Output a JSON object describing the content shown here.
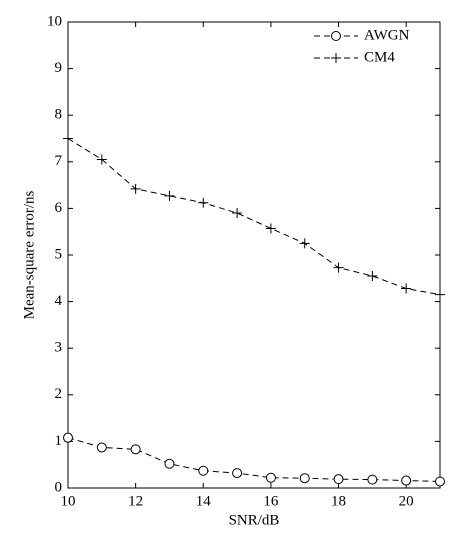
{
  "chart_data": {
    "type": "line",
    "x_label": "SNR/dB",
    "y_label": "Mean-square error/ns",
    "x": [
      10,
      11,
      12,
      13,
      14,
      15,
      16,
      17,
      18,
      19,
      20,
      21
    ],
    "series": [
      {
        "name": "AWGN",
        "color": "#000000",
        "marker": "circle",
        "values": [
          1.08,
          0.87,
          0.83,
          0.52,
          0.37,
          0.32,
          0.22,
          0.21,
          0.19,
          0.18,
          0.16,
          0.14
        ]
      },
      {
        "name": "CM4",
        "color": "#000000",
        "marker": "plus",
        "values": [
          7.5,
          7.05,
          6.42,
          6.27,
          6.12,
          5.9,
          5.57,
          5.25,
          4.73,
          4.55,
          4.28,
          4.15
        ]
      }
    ],
    "xlim": [
      10,
      21
    ],
    "ylim": [
      0,
      10
    ],
    "xticks": [
      10,
      12,
      14,
      16,
      18,
      20
    ],
    "yticks": [
      0,
      1,
      2,
      3,
      4,
      5,
      6,
      7,
      8,
      9,
      10
    ],
    "legend": "upper right",
    "grid": false
  }
}
